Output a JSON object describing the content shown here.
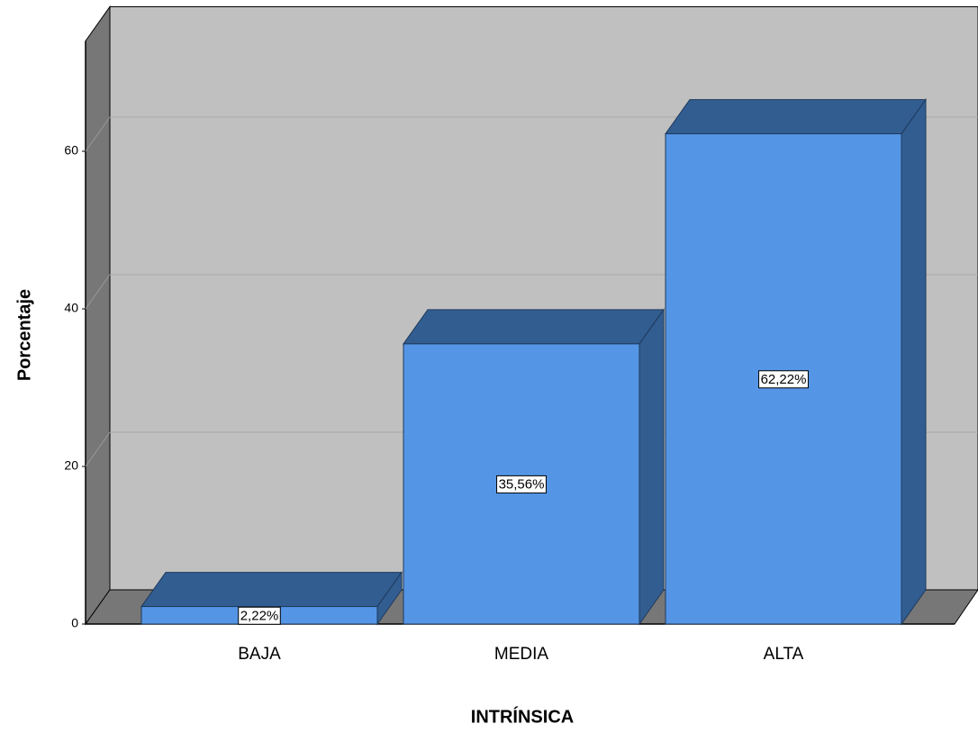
{
  "chart_data": {
    "type": "bar3d",
    "categories": [
      "BAJA",
      "MEDIA",
      "ALTA"
    ],
    "values": [
      2.22,
      35.56,
      62.22
    ],
    "value_labels": [
      "2,22%",
      "35,56%",
      "62,22%"
    ],
    "color": "#5595e5",
    "x_label": "INTRÍNSICA",
    "y_label": "Porcentaje",
    "ylim": [
      0,
      74
    ],
    "yticks": [
      0,
      20,
      40,
      60
    ],
    "grid": true
  }
}
